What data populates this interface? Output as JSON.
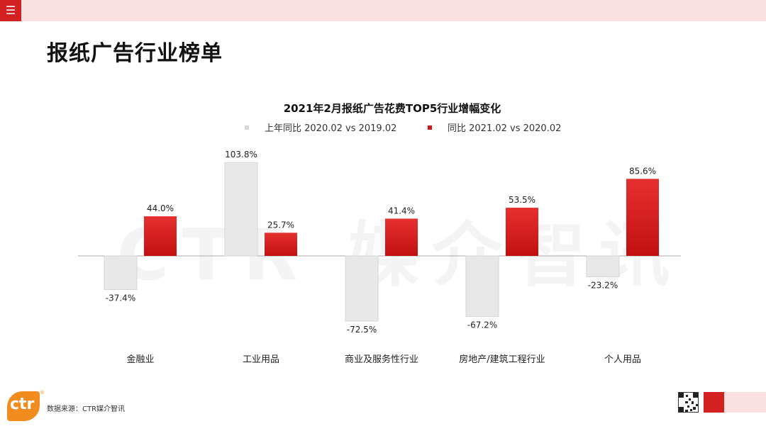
{
  "header": {
    "menu_icon": "hamburger-menu-icon",
    "menu_glyph": "☰",
    "bar_color": "#fbe0e0",
    "accent_color": "#d32020"
  },
  "page_title": "报纸广告行业榜单",
  "watermark": "CTR 媒介智讯",
  "chart_data": {
    "type": "bar",
    "title": "2021年2月报纸广告花费TOP5行业增幅变化",
    "categories": [
      "金融业",
      "工业用品",
      "商业及服务性行业",
      "房地产/建筑工程行业",
      "个人用品"
    ],
    "series": [
      {
        "name": "上年同比 2020.02 vs 2019.02",
        "values": [
          -37.4,
          103.8,
          -72.5,
          -67.2,
          -23.2
        ],
        "color": "#e6e6e6"
      },
      {
        "name": "同比 2021.02 vs 2020.02",
        "values": [
          44.0,
          25.7,
          41.4,
          53.5,
          85.6
        ],
        "color": "#d01818"
      }
    ],
    "legend": "top",
    "grid": false,
    "value_suffix": "%"
  },
  "footer": {
    "source": "数据来源：CTR媒介智讯",
    "logo_text": "ctr",
    "logo_reg": "®",
    "qr_icon": "qr-code-icon"
  }
}
